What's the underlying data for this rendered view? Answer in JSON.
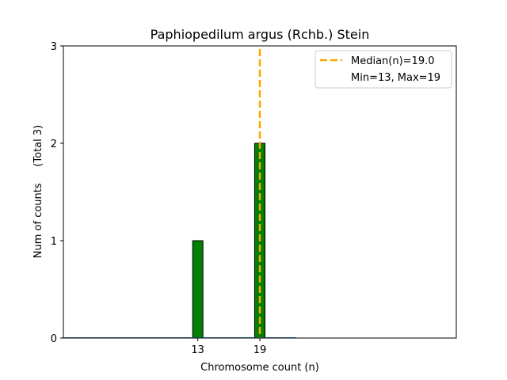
{
  "chart_data": {
    "type": "bar",
    "title": "Paphiopedilum argus (Rchb.) Stein",
    "xlabel": "Chromosome count (n)",
    "ylabel": "Num of counts     (Total 3)",
    "x_ticks": [
      13,
      19
    ],
    "y_ticks": [
      0,
      1,
      2,
      3
    ],
    "xlim": [
      0,
      38
    ],
    "ylim": [
      0,
      3
    ],
    "bars": [
      {
        "x": 13,
        "value": 1
      },
      {
        "x": 19,
        "value": 2
      }
    ],
    "bar_color": "#008000",
    "bar_edge_color": "#000000",
    "median": {
      "value": 19.0,
      "label": "Median(n)=19.0",
      "color": "#FFA500"
    },
    "range_text": "Min=13, Max=19",
    "legend_placement": "upper right",
    "grid": false
  }
}
